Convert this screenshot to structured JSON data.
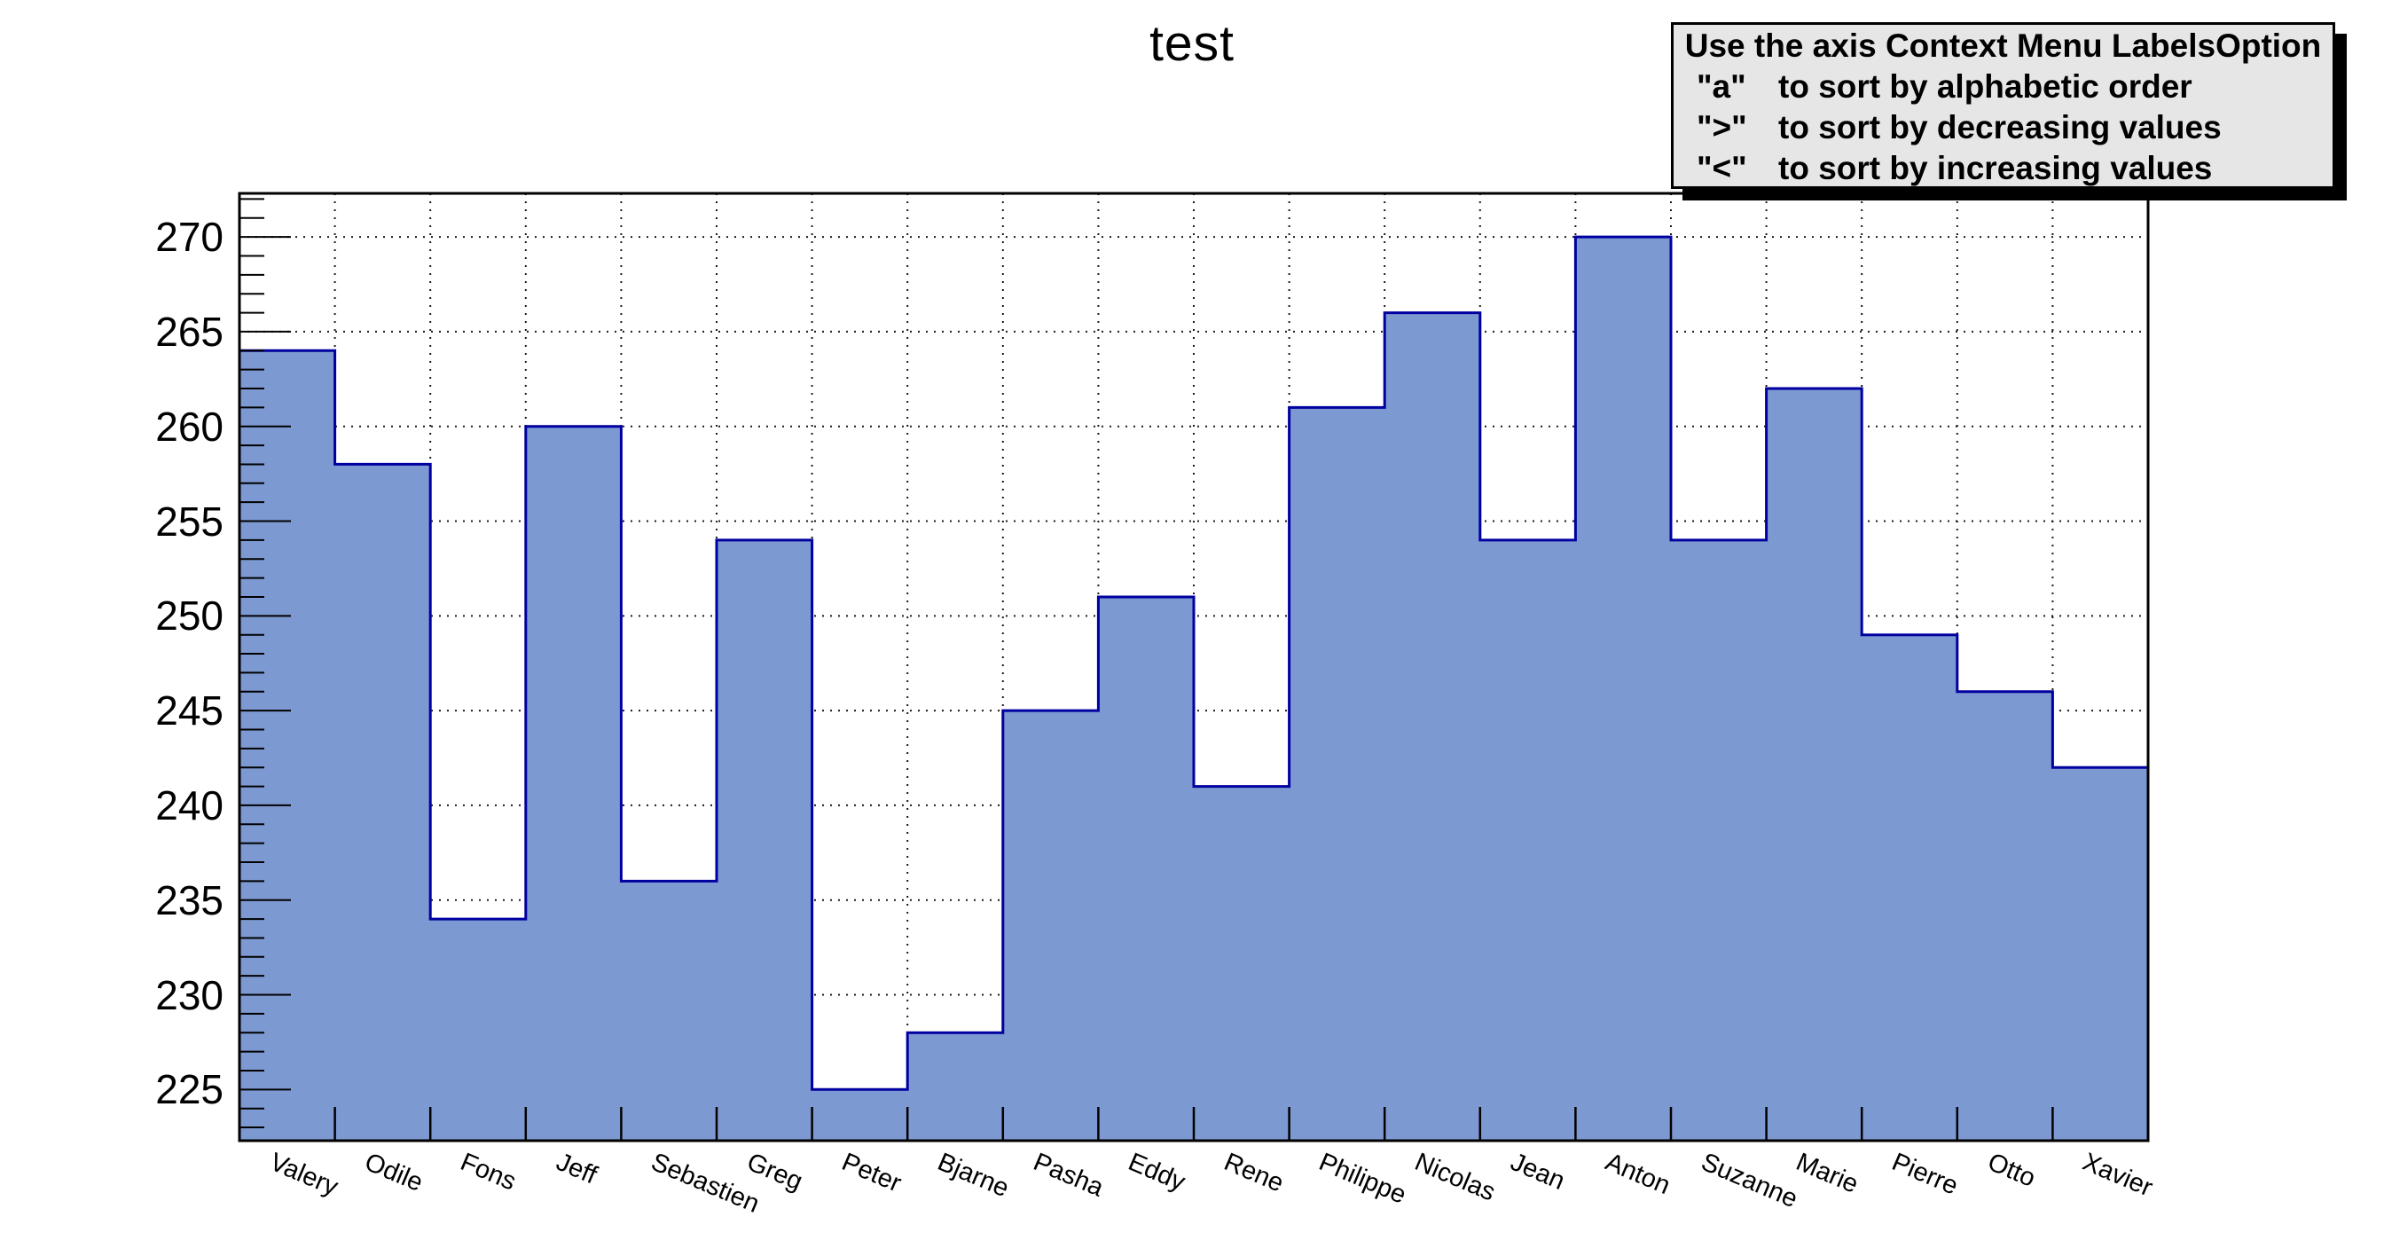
{
  "title": "test",
  "info_box": {
    "heading": "Use the axis Context Menu LabelsOption",
    "items": [
      {
        "symbol": "\"a\"",
        "text": "to sort by alphabetic order"
      },
      {
        "symbol": "\">\"",
        "text": "to sort by decreasing values"
      },
      {
        "symbol": "\"<\"",
        "text": "to sort by increasing values"
      }
    ]
  },
  "chart_data": {
    "type": "bar",
    "style": "histogram-step-filled",
    "title": "test",
    "categories": [
      "Valery",
      "Odile",
      "Fons",
      "Jeff",
      "Sebastien",
      "Greg",
      "Peter",
      "Bjarne",
      "Pasha",
      "Eddy",
      "Rene",
      "Philippe",
      "Nicolas",
      "Jean",
      "Anton",
      "Suzanne",
      "Marie",
      "Pierre",
      "Otto",
      "Xavier"
    ],
    "values": [
      264,
      258,
      234,
      260,
      236,
      254,
      225,
      228,
      245,
      251,
      241,
      261,
      266,
      254,
      270,
      254,
      262,
      249,
      246,
      242
    ],
    "xlabel": "",
    "ylabel": "",
    "ylim": [
      222.3,
      272.3
    ],
    "yticks_labeled": [
      225,
      230,
      235,
      240,
      245,
      250,
      255,
      260,
      265,
      270
    ],
    "y_minor_tick_range": [
      223,
      272
    ],
    "y_minor_tick_step": 1,
    "grid": "dotted horizontal lines at labeled y ticks, dotted vertical lines at every bin boundary, drawn behind bars",
    "x_label_rotation_deg": 23,
    "legend_position": "none"
  },
  "colors": {
    "background": "#ffffff",
    "bar_fill": "#7d99d1",
    "bar_outline": "#0000a0",
    "grid": "#1a1a1a",
    "frame": "#000000",
    "text": "#000000",
    "infobox_bg": "#e6e6e6",
    "infobox_border": "#000000",
    "infobox_shadow": "#000000"
  }
}
